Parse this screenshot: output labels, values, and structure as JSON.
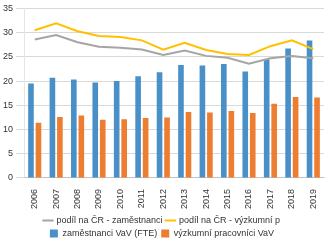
{
  "chart_data": {
    "type": "bar",
    "categories": [
      "2006",
      "2007",
      "2008",
      "2009",
      "2010",
      "2011",
      "2012",
      "2013",
      "2014",
      "2015",
      "2016",
      "2017",
      "2018",
      "2019"
    ],
    "series": [
      {
        "name": "zaměstnanci VaV (FTE)",
        "type": "bar",
        "color": "#4a90c8",
        "values": [
          19.5,
          20.7,
          20.3,
          19.7,
          20.0,
          21.0,
          21.8,
          23.3,
          23.2,
          23.5,
          22.0,
          24.5,
          26.7,
          28.4
        ]
      },
      {
        "name": "výzkumní pracovníci VaV",
        "type": "bar",
        "color": "#ed7d31",
        "values": [
          11.4,
          12.6,
          12.9,
          12.0,
          12.1,
          12.4,
          12.5,
          13.6,
          13.5,
          13.8,
          13.4,
          15.3,
          16.7,
          16.6
        ]
      },
      {
        "name": "podíl na ČR - zaměstnanci",
        "type": "line",
        "color": "#a5a5a5",
        "values": [
          28.6,
          29.5,
          28.0,
          27.1,
          26.9,
          26.5,
          25.4,
          26.3,
          25.2,
          24.8,
          23.6,
          24.7,
          25.2,
          24.7
        ]
      },
      {
        "name": "podíl na ČR - výzkumní p",
        "type": "line",
        "color": "#ffc000",
        "values": [
          30.5,
          31.9,
          30.3,
          29.3,
          29.1,
          28.4,
          26.5,
          27.9,
          26.4,
          25.6,
          25.4,
          27.2,
          28.4,
          26.6
        ]
      }
    ],
    "ylim": [
      0,
      35
    ],
    "yticks": [
      0,
      5,
      10,
      15,
      20,
      25,
      30,
      35
    ],
    "grid": true,
    "legend": "bottom"
  }
}
